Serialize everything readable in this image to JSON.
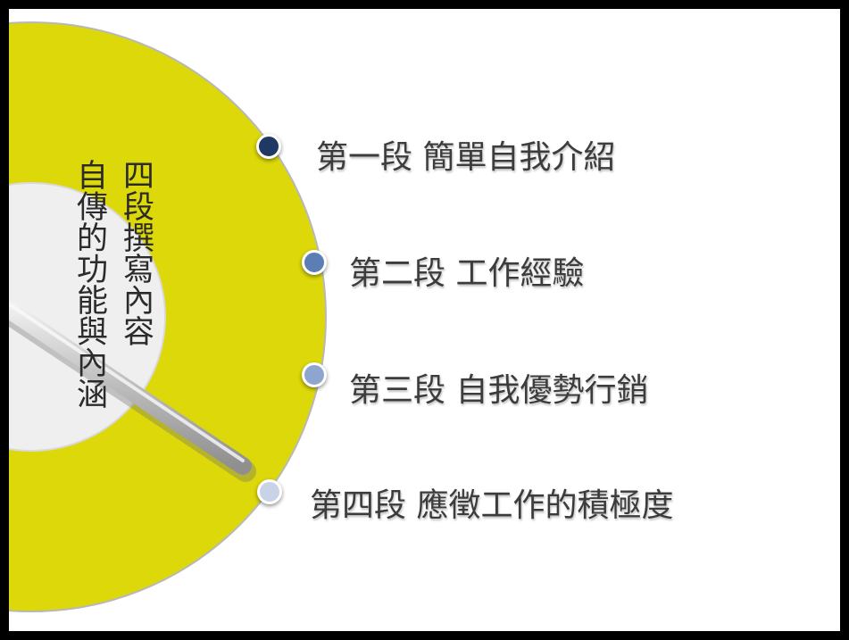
{
  "slide": {
    "title_vertical_main": "自傳的功能與內涵",
    "title_vertical_sub": "四段撰寫內容",
    "items": [
      {
        "label": "第一段 簡單自我介紹",
        "bullet_color": "#1f3864"
      },
      {
        "label": "第二段 工作經驗",
        "bullet_color": "#5b7fb5"
      },
      {
        "label": "第三段 自我優勢行銷",
        "bullet_color": "#8ea6cf"
      },
      {
        "label": "第四段 應徵工作的積極度",
        "bullet_color": "#c9d3e8"
      }
    ]
  },
  "colors": {
    "disc_yellow": "#dcd80a",
    "frame": "#000000",
    "background": "#ffffff"
  }
}
